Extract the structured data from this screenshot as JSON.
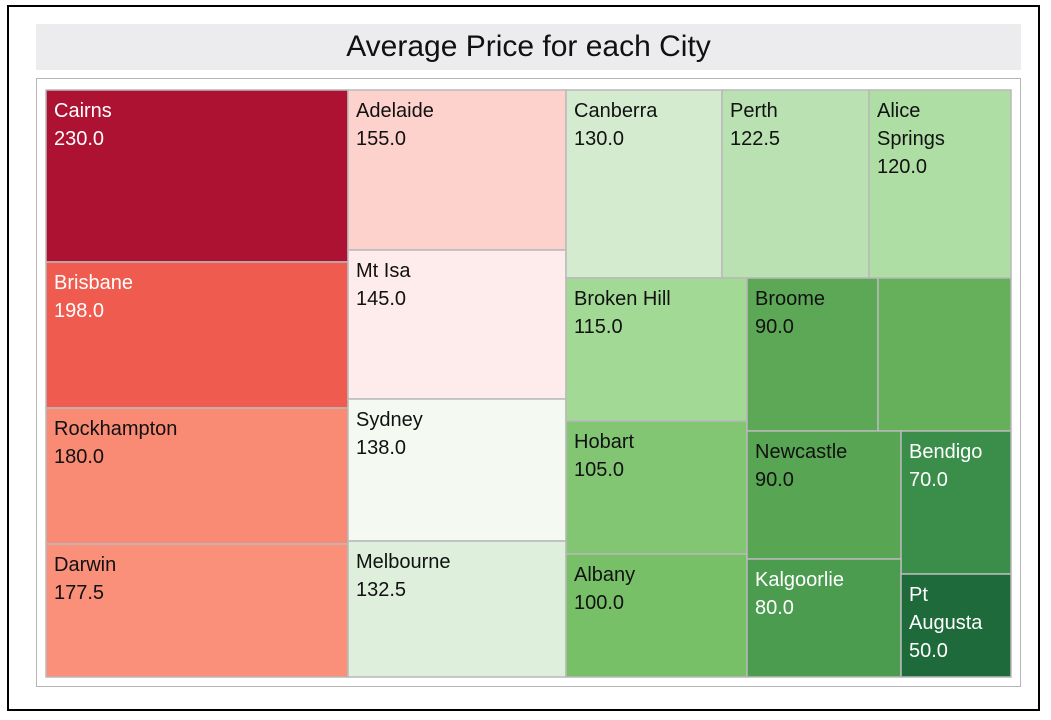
{
  "chart_data": {
    "type": "treemap",
    "title": "Average Price for each City",
    "colors": {
      "max": "#ad1233",
      "mid": "#fdeceb",
      "min": "#1f6a3b"
    },
    "cells": [
      {
        "label": "Cairns",
        "value": 230.0,
        "value_text": "230.0",
        "color": "#ad1233",
        "text_color": "#ffffff"
      },
      {
        "label": "Brisbane",
        "value": 198.0,
        "value_text": "198.0",
        "color": "#ef5b4f",
        "text_color": "#ffffff"
      },
      {
        "label": "Rockhampton",
        "value": 180.0,
        "value_text": "180.0",
        "color": "#f98a74",
        "text_color": "#111111"
      },
      {
        "label": "Darwin",
        "value": 177.5,
        "value_text": "177.5",
        "color": "#fa9079",
        "text_color": "#111111"
      },
      {
        "label": "Adelaide",
        "value": 155.0,
        "value_text": "155.0",
        "color": "#fdd2cd",
        "text_color": "#111111"
      },
      {
        "label": "Mt Isa",
        "value": 145.0,
        "value_text": "145.0",
        "color": "#fdeceb",
        "text_color": "#111111"
      },
      {
        "label": "Sydney",
        "value": 138.0,
        "value_text": "138.0",
        "color": "#f4faf2",
        "text_color": "#111111"
      },
      {
        "label": "Melbourne",
        "value": 132.5,
        "value_text": "132.5",
        "color": "#deefdc",
        "text_color": "#111111"
      },
      {
        "label": "Canberra",
        "value": 130.0,
        "value_text": "130.0",
        "color": "#d4ebcf",
        "text_color": "#111111"
      },
      {
        "label": "Perth",
        "value": 122.5,
        "value_text": "122.5",
        "color": "#b9e1b1",
        "text_color": "#111111"
      },
      {
        "label": "Alice Springs",
        "lines": [
          "Alice",
          "Springs"
        ],
        "value": 120.0,
        "value_text": "120.0",
        "color": "#aede a4",
        "text_color": "#111111"
      },
      {
        "label": "Broken Hill",
        "value": 115.0,
        "value_text": "115.0",
        "color": "#a2d995",
        "text_color": "#111111"
      },
      {
        "label": "Hobart",
        "value": 105.0,
        "value_text": "105.0",
        "color": "#82c674",
        "text_color": "#111111"
      },
      {
        "label": "Albany",
        "value": 100.0,
        "value_text": "100.0",
        "color": "#78c068",
        "text_color": "#111111"
      },
      {
        "label": "Broome",
        "value": 90.0,
        "value_text": "90.0",
        "color": "#5da857",
        "text_color": "#111111"
      },
      {
        "label": "",
        "value": null,
        "value_text": "",
        "color": "#66b05b",
        "text_color": "#111111"
      },
      {
        "label": "Newcastle",
        "value": 90.0,
        "value_text": "90.0",
        "color": "#58a553",
        "text_color": "#111111"
      },
      {
        "label": "Bendigo",
        "value": 70.0,
        "value_text": "70.0",
        "color": "#3b8d4a",
        "text_color": "#ffffff"
      },
      {
        "label": "Kalgoorlie",
        "value": 80.0,
        "value_text": "80.0",
        "color": "#4c9c50",
        "text_color": "#ffffff"
      },
      {
        "label": "Pt Augusta",
        "lines": [
          "Pt",
          "Augusta"
        ],
        "value": 50.0,
        "value_text": "50.0",
        "color": "#1f6a3b",
        "text_color": "#ffffff"
      }
    ]
  }
}
